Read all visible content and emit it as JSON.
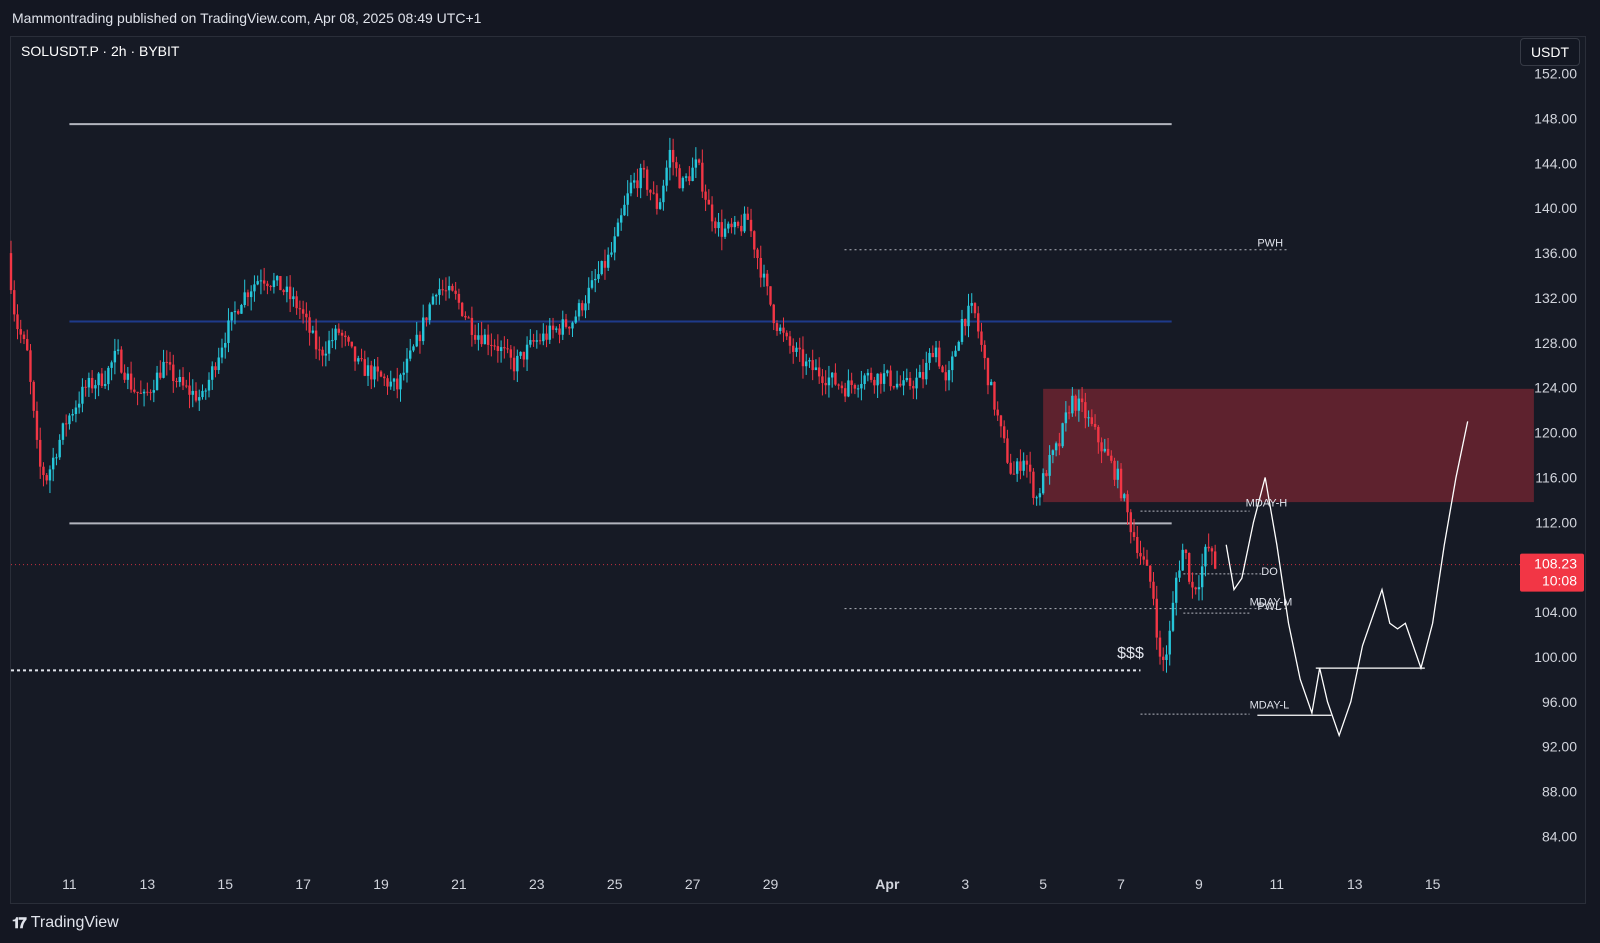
{
  "header": {
    "publish_info": "Mammontrading published on TradingView.com, Apr 08, 2025 08:49 UTC+1"
  },
  "symbol_info": "SOLUSDT.P · 2h · BYBIT",
  "currency_button": "USDT",
  "footer": {
    "brand": "TradingView",
    "logo_icon": "tradingview-logo-icon"
  },
  "colors": {
    "background": "#161a25",
    "up_candle": "#26c6da",
    "down_candle": "#f23645",
    "supply_zone": "#6b2430",
    "last_price": "#f23645",
    "grid_text": "#d1d4dc"
  },
  "chart_data": {
    "type": "candlestick",
    "y_axis": {
      "ticks": [
        "152.00",
        "148.00",
        "144.00",
        "140.00",
        "136.00",
        "132.00",
        "128.00",
        "124.00",
        "120.00",
        "116.00",
        "112.00",
        "108.00",
        "104.00",
        "100.00",
        "96.00",
        "92.00",
        "88.00",
        "84.00"
      ],
      "ylim": [
        81,
        155
      ]
    },
    "x_axis": {
      "ticks": [
        {
          "day": 11,
          "label": "11"
        },
        {
          "day": 13,
          "label": "13"
        },
        {
          "day": 15,
          "label": "15"
        },
        {
          "day": 17,
          "label": "17"
        },
        {
          "day": 19,
          "label": "19"
        },
        {
          "day": 21,
          "label": "21"
        },
        {
          "day": 23,
          "label": "23"
        },
        {
          "day": 25,
          "label": "25"
        },
        {
          "day": 27,
          "label": "27"
        },
        {
          "day": 29,
          "label": "29"
        },
        {
          "day": 32,
          "label": "Apr"
        },
        {
          "day": 34,
          "label": "3"
        },
        {
          "day": 36,
          "label": "5"
        },
        {
          "day": 38,
          "label": "7"
        },
        {
          "day": 40,
          "label": "9"
        },
        {
          "day": 42,
          "label": "11"
        },
        {
          "day": 44,
          "label": "13"
        },
        {
          "day": 46,
          "label": "15"
        }
      ],
      "xlim": [
        9.5,
        48.5
      ]
    },
    "price_path": [
      [
        9.5,
        136
      ],
      [
        9.7,
        130
      ],
      [
        10,
        127
      ],
      [
        10.3,
        117
      ],
      [
        10.5,
        116
      ],
      [
        10.7,
        118
      ],
      [
        11,
        121
      ],
      [
        11.5,
        124
      ],
      [
        12,
        125
      ],
      [
        12.3,
        127
      ],
      [
        12.7,
        124
      ],
      [
        13,
        123
      ],
      [
        13.5,
        126
      ],
      [
        14,
        124
      ],
      [
        14.5,
        123
      ],
      [
        15,
        128
      ],
      [
        15.5,
        132
      ],
      [
        16,
        134
      ],
      [
        16.5,
        133
      ],
      [
        17,
        131
      ],
      [
        17.5,
        127
      ],
      [
        18,
        129
      ],
      [
        18.5,
        126
      ],
      [
        19,
        125
      ],
      [
        19.5,
        124
      ],
      [
        20,
        128
      ],
      [
        20.5,
        133
      ],
      [
        21,
        132
      ],
      [
        21.5,
        129
      ],
      [
        22,
        128
      ],
      [
        22.5,
        126
      ],
      [
        23,
        128
      ],
      [
        23.5,
        129
      ],
      [
        24,
        130
      ],
      [
        24.5,
        133
      ],
      [
        25,
        136
      ],
      [
        25.5,
        142
      ],
      [
        25.8,
        143
      ],
      [
        26.2,
        140
      ],
      [
        26.5,
        145
      ],
      [
        26.8,
        142
      ],
      [
        27.2,
        144
      ],
      [
        27.5,
        140
      ],
      [
        27.8,
        138
      ],
      [
        28.2,
        138
      ],
      [
        28.5,
        139
      ],
      [
        28.8,
        135
      ],
      [
        29.2,
        130
      ],
      [
        29.5,
        128
      ],
      [
        30,
        126
      ],
      [
        30.5,
        125
      ],
      [
        31,
        124
      ],
      [
        31.5,
        125
      ],
      [
        32,
        125
      ],
      [
        32.5,
        124
      ],
      [
        33,
        125
      ],
      [
        33.3,
        128
      ],
      [
        33.6,
        124
      ],
      [
        34,
        130
      ],
      [
        34.3,
        131
      ],
      [
        34.6,
        126
      ],
      [
        35,
        120
      ],
      [
        35.3,
        116
      ],
      [
        35.6,
        118
      ],
      [
        35.9,
        114
      ],
      [
        36.2,
        117
      ],
      [
        36.5,
        119
      ],
      [
        36.8,
        123
      ],
      [
        37.1,
        122
      ],
      [
        37.4,
        120
      ],
      [
        37.7,
        118
      ],
      [
        38,
        116
      ],
      [
        38.3,
        112
      ],
      [
        38.6,
        109
      ],
      [
        38.9,
        106
      ],
      [
        39.1,
        99
      ],
      [
        39.3,
        101
      ],
      [
        39.5,
        107
      ],
      [
        39.7,
        110
      ],
      [
        39.9,
        106
      ],
      [
        40.1,
        107
      ],
      [
        40.3,
        110
      ],
      [
        40.5,
        108
      ]
    ],
    "horizontal_levels": [
      {
        "price": 147.5,
        "style": "solid",
        "color": "#b2b5be",
        "from_day": 11,
        "to_day": 39.3
      },
      {
        "price": 129.9,
        "style": "solid",
        "color": "#1e3a8a",
        "from_day": 11,
        "to_day": 39.3
      },
      {
        "price": 111.9,
        "style": "solid",
        "color": "#b2b5be",
        "from_day": 11,
        "to_day": 39.3
      },
      {
        "price": 98.8,
        "style": "dotted",
        "color": "#e0e3eb",
        "from_day": 9.5,
        "to_day": 38.5
      },
      {
        "price": 136.3,
        "style": "dotted",
        "color": "#b2b5be",
        "from_day": 30.9,
        "to_day": 42.3
      },
      {
        "price": 104.3,
        "style": "dotted",
        "color": "#b2b5be",
        "from_day": 30.9,
        "to_day": 42.3
      }
    ],
    "level_labels": [
      {
        "text": "PWH",
        "day": 41.5,
        "price": 136.6
      },
      {
        "text": "MDAY-H",
        "day": 41.2,
        "price": 113.4
      },
      {
        "text": "DO",
        "day": 41.6,
        "price": 107.3
      },
      {
        "text": "MDAY-M",
        "day": 41.3,
        "price": 104.6
      },
      {
        "text": "PWL",
        "day": 41.5,
        "price": 104.2
      },
      {
        "text": "MDAY-L",
        "day": 41.3,
        "price": 95.4
      },
      {
        "text": "$$$",
        "day": 37.9,
        "price": 99.9
      }
    ],
    "small_levels": [
      {
        "price": 113.0,
        "from_day": 38.5,
        "to_day": 41.3
      },
      {
        "price": 107.4,
        "from_day": 39.6,
        "to_day": 41.6
      },
      {
        "price": 103.9,
        "from_day": 39.6,
        "to_day": 41.3
      },
      {
        "price": 94.9,
        "from_day": 38.5,
        "to_day": 41.3
      }
    ],
    "supply_zone": {
      "from_day": 36,
      "to_day": 48.6,
      "top": 123.9,
      "bottom": 113.8
    },
    "projection_path": [
      [
        40.7,
        110
      ],
      [
        40.9,
        106
      ],
      [
        41.1,
        107
      ],
      [
        41.4,
        112
      ],
      [
        41.7,
        116
      ],
      [
        42,
        110
      ],
      [
        42.3,
        103
      ],
      [
        42.6,
        98
      ],
      [
        42.9,
        95
      ],
      [
        43.1,
        99
      ],
      [
        43.3,
        96
      ],
      [
        43.6,
        93
      ],
      [
        43.9,
        96
      ],
      [
        44.2,
        101
      ],
      [
        44.5,
        104
      ],
      [
        44.7,
        106
      ],
      [
        44.9,
        103
      ],
      [
        45.1,
        102.5
      ],
      [
        45.3,
        103
      ],
      [
        45.5,
        101
      ],
      [
        45.7,
        99
      ],
      [
        46,
        103
      ],
      [
        46.3,
        110
      ],
      [
        46.6,
        116
      ],
      [
        46.9,
        121
      ]
    ],
    "projection_box": {
      "from_day": 43,
      "to_day": 45.8,
      "price": 99.0
    },
    "projection_box_low": {
      "from_day": 41.5,
      "to_day": 43.4,
      "price": 94.8
    },
    "last_price": {
      "label": "108.23",
      "countdown": "10:08",
      "price": 108.23
    }
  }
}
